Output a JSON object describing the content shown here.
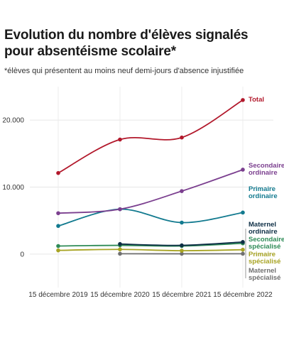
{
  "header": {
    "title": "Evolution du nombre d'élèves signalés pour absentéisme scolaire*",
    "subtitle": "*élèves qui présentent au moins neuf demi-jours d'absence injustifiée"
  },
  "chart_data": {
    "type": "line",
    "title": "Evolution du nombre d'élèves signalés pour absentéisme scolaire*",
    "subtitle": "*élèves qui présentent au moins neuf demi-jours d'absence injustifiée",
    "categories": [
      "15 décembre 2019",
      "15 décembre 2020",
      "15 décembre 2021",
      "15 décembre 2022"
    ],
    "y_ticks": [
      0,
      10000,
      20000
    ],
    "y_tick_labels": [
      "0",
      "10.000",
      "20.000"
    ],
    "ylim": [
      -5000,
      25000
    ],
    "grid": true,
    "legend": "direct labels at right end of lines",
    "series": [
      {
        "name": "Total",
        "color": "#b2182b",
        "values": [
          12100,
          17100,
          17400,
          23000
        ],
        "label_lines": [
          "Total"
        ]
      },
      {
        "name": "Secondaire ordinaire",
        "color": "#7b3f8f",
        "values": [
          6100,
          6700,
          9400,
          12600
        ],
        "label_lines": [
          "Secondaire",
          "ordinaire"
        ]
      },
      {
        "name": "Primaire ordinaire",
        "color": "#127a8f",
        "values": [
          4200,
          6700,
          4700,
          6200
        ],
        "label_lines": [
          "Primaire",
          "ordinaire"
        ]
      },
      {
        "name": "Maternel ordinaire",
        "color": "#0d2e45",
        "values": [
          null,
          1500,
          1300,
          1800
        ],
        "label_lines": [
          "Maternel",
          "ordinaire"
        ]
      },
      {
        "name": "Secondaire spécialisé",
        "color": "#2e8b57",
        "values": [
          1200,
          1300,
          1200,
          1600
        ],
        "label_lines": [
          "Secondaire",
          "spécialisé"
        ]
      },
      {
        "name": "Primaire spécialisé",
        "color": "#a8a424",
        "values": [
          550,
          700,
          500,
          650
        ],
        "label_lines": [
          "Primaire",
          "spécialisé"
        ]
      },
      {
        "name": "Maternel spécialisé",
        "color": "#707070",
        "values": [
          null,
          50,
          40,
          50
        ],
        "label_lines": [
          "Maternel",
          "spécialisé"
        ]
      }
    ]
  }
}
